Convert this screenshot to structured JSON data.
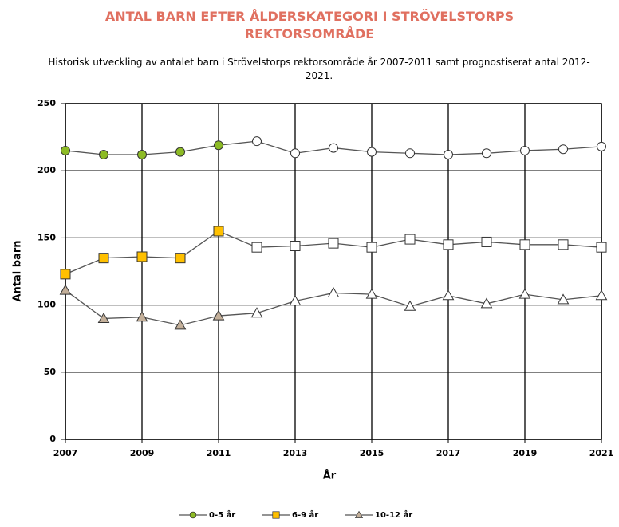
{
  "chart_data": {
    "type": "line",
    "title": "ANTAL BARN EFTER ÅLDERSKATEGORI I STRÖVELSTORPS REKTORSOMRÅDE",
    "subtitle": "Historisk utveckling av antalet barn i Strövelstorps rektorsområde år 2007-2011 samt prognostiserat antal 2012-2021.",
    "x_label": "År",
    "y_label": "Antal barn",
    "x": [
      2007,
      2008,
      2009,
      2010,
      2011,
      2012,
      2013,
      2014,
      2015,
      2016,
      2017,
      2018,
      2019,
      2020,
      2021
    ],
    "forecast_start": 2012,
    "series": [
      {
        "name": "0-5 år",
        "color": "#8dbb25",
        "marker": "circle",
        "values": [
          215,
          212,
          212,
          214,
          219,
          222,
          213,
          217,
          214,
          213,
          212,
          213,
          215,
          216,
          218
        ]
      },
      {
        "name": "6-9 år",
        "color": "#ffc000",
        "marker": "square",
        "values": [
          123,
          135,
          136,
          135,
          155,
          143,
          144,
          146,
          143,
          149,
          145,
          147,
          145,
          145,
          143
        ]
      },
      {
        "name": "10-12 år",
        "color": "#c4b09a",
        "marker": "triangle",
        "values": [
          111,
          90,
          91,
          85,
          92,
          94,
          103,
          109,
          108,
          99,
          107,
          101,
          108,
          104,
          107
        ]
      }
    ],
    "xlim": [
      2007,
      2021
    ],
    "xticks": [
      2007,
      2009,
      2011,
      2013,
      2015,
      2017,
      2019,
      2021
    ],
    "ylim": [
      0,
      250
    ],
    "yticks": [
      0,
      50,
      100,
      150,
      200,
      250
    ],
    "grid": true
  }
}
